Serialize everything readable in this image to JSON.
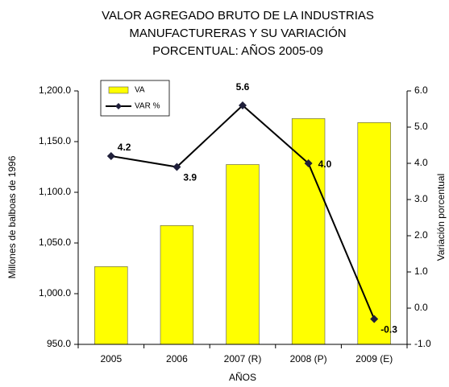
{
  "chart_data": {
    "type": "bar",
    "title": [
      "VALOR AGREGADO BRUTO DE LA INDUSTRIAS",
      "MANUFACTURERAS Y SU VARIACIÓN",
      "PORCENTUAL: AÑOS 2005-09"
    ],
    "x_label": "AÑOS",
    "y_label": "Millones de balboas de 1996",
    "y2_label": "Variación porcentual",
    "categories": [
      "2005",
      "2006",
      "2007 (R)",
      "2008 (P)",
      "2009 (E)"
    ],
    "series": [
      {
        "name": "VA",
        "type": "bar",
        "color": "#ffff00",
        "values": [
          1026.7,
          1067.2,
          1127.4,
          1172.7,
          1168.8
        ]
      },
      {
        "name": "VAR %",
        "type": "line",
        "axis": "y2",
        "color": "#000000",
        "values": [
          4.2,
          3.9,
          5.6,
          4.0,
          -0.3
        ],
        "value_labels": [
          "4.2",
          "3.9",
          "5.6",
          "4.0",
          "-0.3"
        ]
      }
    ],
    "ylim": [
      950,
      1200
    ],
    "yticks": [
      {
        "value": 950,
        "label": "950.0"
      },
      {
        "value": 1000,
        "label": "1,000.0"
      },
      {
        "value": 1050,
        "label": "1,050.0"
      },
      {
        "value": 1100,
        "label": "1,100.0"
      },
      {
        "value": 1150,
        "label": "1,150.0"
      },
      {
        "value": 1200,
        "label": "1,200.0"
      }
    ],
    "y2lim": [
      -1,
      6
    ],
    "y2ticks": [
      {
        "value": -1,
        "label": "-1.0"
      },
      {
        "value": 0,
        "label": "0.0"
      },
      {
        "value": 1,
        "label": "1.0"
      },
      {
        "value": 2,
        "label": "2.0"
      },
      {
        "value": 3,
        "label": "3.0"
      },
      {
        "value": 4,
        "label": "4.0"
      },
      {
        "value": 5,
        "label": "5.0"
      },
      {
        "value": 6,
        "label": "6.0"
      }
    ],
    "grid": false,
    "legend": "top-left"
  }
}
